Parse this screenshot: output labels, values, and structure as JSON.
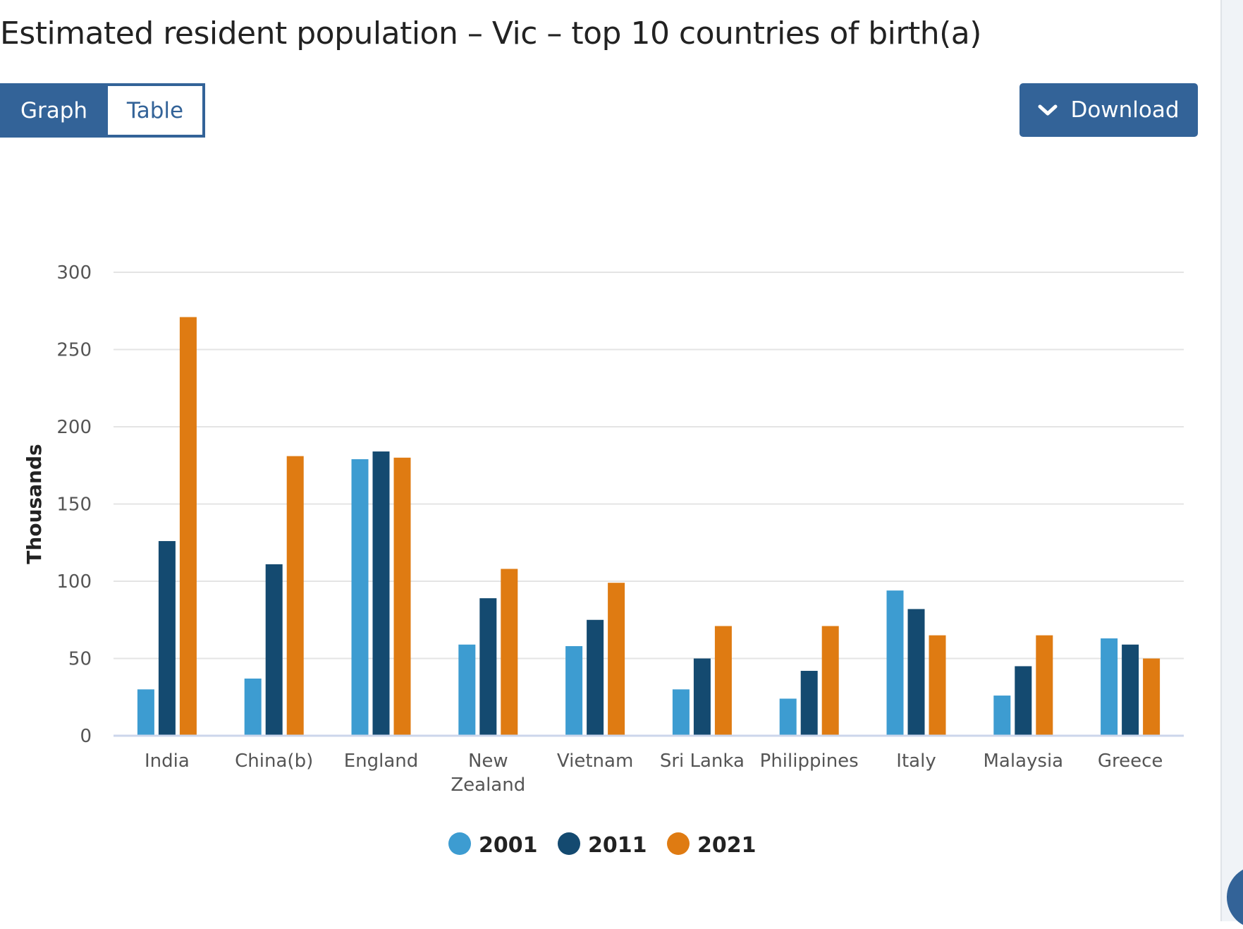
{
  "title": "Estimated resident population – Vic – top 10 countries of birth(a)",
  "view_toggle": {
    "graph_label": "Graph",
    "table_label": "Table",
    "active": "Graph"
  },
  "download_label": "Download",
  "icons": {
    "download": "chevron-down-icon"
  },
  "colors": {
    "brand": "#336398",
    "s2001": "#3d9cd1",
    "s2011": "#144a70",
    "s2021": "#df7b12"
  },
  "chart_data": {
    "type": "bar",
    "title": "Estimated resident population – Vic – top 10 countries of birth(a)",
    "xlabel": "",
    "ylabel": "Thousands",
    "ylim": [
      0,
      300
    ],
    "yticks": [
      0,
      50,
      100,
      150,
      200,
      250,
      300
    ],
    "grid": true,
    "legend_position": "bottom",
    "categories": [
      "India",
      "China(b)",
      "England",
      "New Zealand",
      "Vietnam",
      "Sri Lanka",
      "Philippines",
      "Italy",
      "Malaysia",
      "Greece"
    ],
    "category_lines": [
      [
        "India"
      ],
      [
        "China(b)"
      ],
      [
        "England"
      ],
      [
        "New",
        "Zealand"
      ],
      [
        "Vietnam"
      ],
      [
        "Sri Lanka"
      ],
      [
        "Philippines"
      ],
      [
        "Italy"
      ],
      [
        "Malaysia"
      ],
      [
        "Greece"
      ]
    ],
    "series": [
      {
        "name": "2001",
        "color": "#3d9cd1",
        "values": [
          30,
          37,
          179,
          59,
          58,
          30,
          24,
          94,
          26,
          63
        ]
      },
      {
        "name": "2011",
        "color": "#144a70",
        "values": [
          126,
          111,
          184,
          89,
          75,
          50,
          42,
          82,
          45,
          59
        ]
      },
      {
        "name": "2021",
        "color": "#df7b12",
        "values": [
          271,
          181,
          180,
          108,
          99,
          71,
          71,
          65,
          65,
          50
        ]
      }
    ]
  }
}
